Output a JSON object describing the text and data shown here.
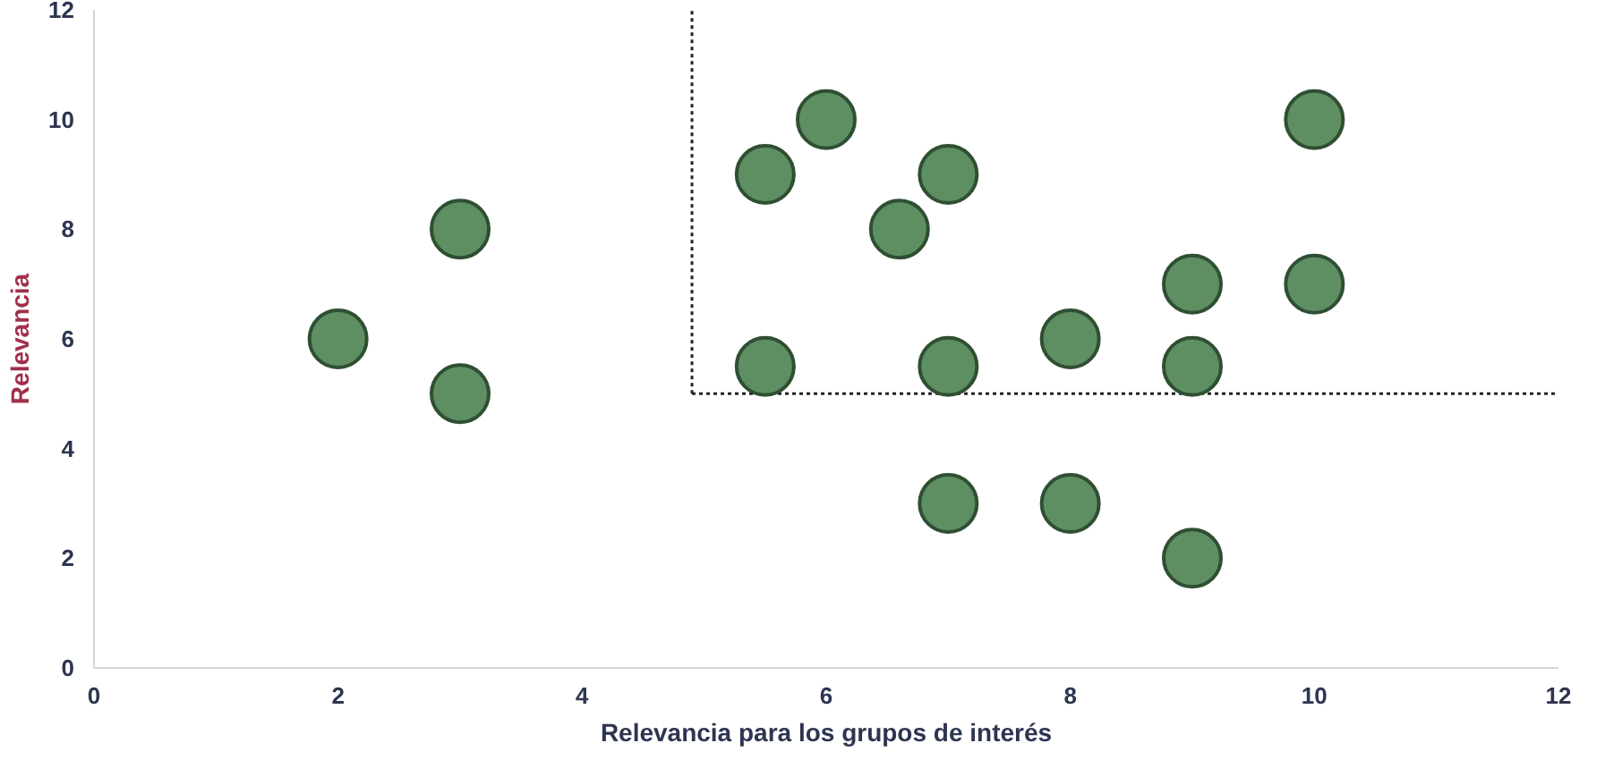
{
  "chart_data": {
    "type": "scatter",
    "xlabel": "Relevancia para los grupos de interés",
    "ylabel": "Relevancia",
    "x": [
      2,
      3,
      3,
      5.5,
      5.5,
      6,
      6.6,
      7,
      7,
      7,
      8,
      8,
      9,
      9,
      9,
      10,
      10
    ],
    "values": [
      6,
      8,
      5,
      5.5,
      9,
      10,
      8,
      9,
      5.5,
      3,
      6,
      3,
      7,
      5.5,
      2,
      10,
      7
    ],
    "color": "#5e8f62",
    "marker": "circle",
    "grid": false,
    "xlim": [
      0,
      12
    ],
    "ylim": [
      0,
      12
    ],
    "xticks": [
      0,
      2,
      4,
      6,
      8,
      10,
      12
    ],
    "yticks": [
      0,
      2,
      4,
      6,
      8,
      10,
      12
    ],
    "ref_lines": [
      {
        "axis": "x",
        "value": 4.9,
        "color": "#222222",
        "line_style": "dotted"
      },
      {
        "axis": "y",
        "value": 5,
        "color": "#222222",
        "line_style": "dotted"
      }
    ]
  }
}
